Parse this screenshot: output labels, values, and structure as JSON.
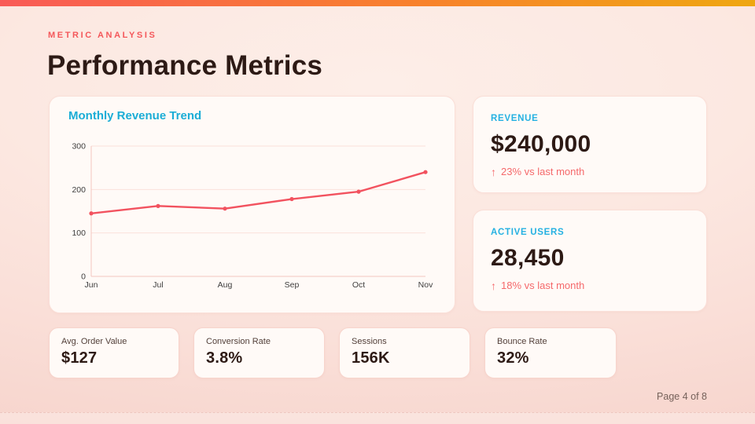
{
  "page": {
    "eyebrow": "METRIC ANALYSIS",
    "title": "Performance Metrics",
    "footer": "Page 4 of 8"
  },
  "chart_data": {
    "type": "line",
    "title": "Monthly Revenue Trend",
    "categories": [
      "Jun",
      "Jul",
      "Aug",
      "Sep",
      "Oct",
      "Nov"
    ],
    "values": [
      145,
      162,
      156,
      178,
      195,
      240
    ],
    "xlabel": "",
    "ylabel": "",
    "ylim": [
      0,
      300
    ],
    "yticks": [
      0,
      100,
      200,
      300
    ],
    "grid": true,
    "legend": false,
    "line_color": "#f2525f",
    "grid_color": "#fbe0da",
    "axis_color": "#f3c6bf",
    "tick_color": "#3f3e3e",
    "title_color": "#1badd6"
  },
  "stat_cards": [
    {
      "label": "REVENUE",
      "value": "$240,000",
      "arrow": "↑",
      "delta": "23% vs last month"
    },
    {
      "label": "ACTIVE USERS",
      "value": "28,450",
      "arrow": "↑",
      "delta": "18% vs last month"
    }
  ],
  "mini_cards": [
    {
      "label": "Avg. Order Value",
      "value": "$127"
    },
    {
      "label": "Conversion Rate",
      "value": "3.8%"
    },
    {
      "label": "Sessions",
      "value": "156K"
    },
    {
      "label": "Bounce Rate",
      "value": "32%"
    }
  ],
  "colors": {
    "topbar_left": "#f95a57",
    "topbar_mid": "#f8812c",
    "topbar_right": "#efa711",
    "accent_cyan": "#25b1e2",
    "accent_coral": "#f4575a",
    "heading": "#2d1a15",
    "card_bg": "#fffaf7",
    "card_border": "#fadfd8",
    "page_bg": "#fadfd8"
  }
}
